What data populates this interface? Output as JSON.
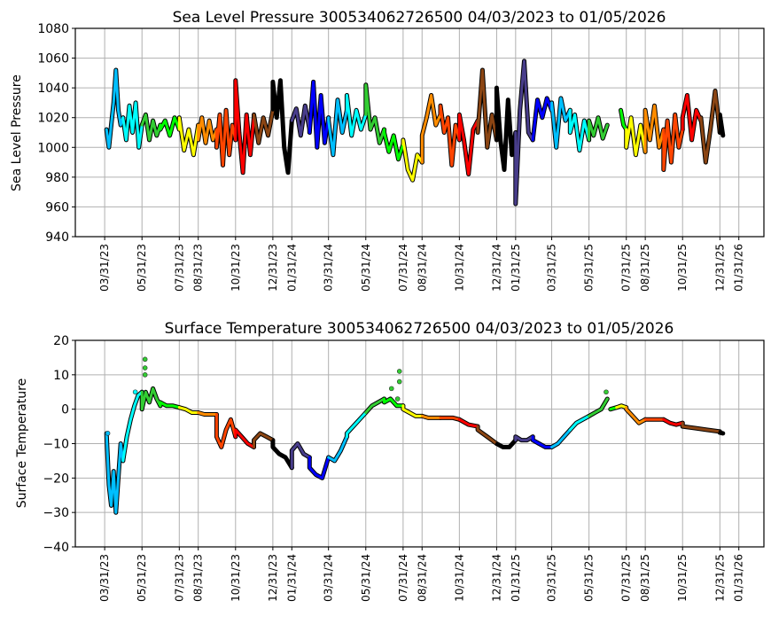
{
  "chart_data": [
    {
      "type": "line",
      "title": "Sea Level Pressure 300534062726500  04/03/2023 to 01/05/2026",
      "xlabel": "",
      "ylabel": "Sea Level Pressure",
      "ylim": [
        940,
        1080
      ],
      "yticks": [
        940,
        960,
        980,
        1000,
        1020,
        1040,
        1060,
        1080
      ],
      "xlim": [
        "2023-02-11",
        "2026-03-13"
      ],
      "grid": true,
      "xticks": [
        {
          "date": "2023-03-31",
          "label": "03/31/23"
        },
        {
          "date": "2023-05-31",
          "label": "05/31/23"
        },
        {
          "date": "2023-07-31",
          "label": "07/31/23"
        },
        {
          "date": "2023-08-31",
          "label": "08/31/23"
        },
        {
          "date": "2023-10-31",
          "label": "10/31/23"
        },
        {
          "date": "2023-12-31",
          "label": "12/31/23"
        },
        {
          "date": "2024-01-31",
          "label": "01/31/24"
        },
        {
          "date": "2024-03-31",
          "label": "03/31/24"
        },
        {
          "date": "2024-05-31",
          "label": "05/31/24"
        },
        {
          "date": "2024-07-31",
          "label": "07/31/24"
        },
        {
          "date": "2024-08-31",
          "label": "08/31/24"
        },
        {
          "date": "2024-10-31",
          "label": "10/31/24"
        },
        {
          "date": "2024-12-31",
          "label": "12/31/24"
        },
        {
          "date": "2025-01-31",
          "label": "01/31/25"
        },
        {
          "date": "2025-03-31",
          "label": "03/31/25"
        },
        {
          "date": "2025-05-31",
          "label": "05/31/25"
        },
        {
          "date": "2025-07-31",
          "label": "07/31/25"
        },
        {
          "date": "2025-08-31",
          "label": "08/31/25"
        },
        {
          "date": "2025-10-31",
          "label": "10/31/25"
        },
        {
          "date": "2025-12-31",
          "label": "12/31/25"
        },
        {
          "date": "2026-01-31",
          "label": "01/31/26"
        }
      ],
      "segments": [
        {
          "from": "2023-04-03",
          "to": "2023-04-30",
          "color": "#00bfff",
          "values": [
            1012,
            1000,
            1015,
            1030,
            1052,
            1025,
            1015,
            1020
          ]
        },
        {
          "from": "2023-04-30",
          "to": "2023-05-31",
          "color": "#00ffff",
          "values": [
            1020,
            1005,
            1028,
            1010,
            1030,
            1000,
            1015
          ]
        },
        {
          "from": "2023-05-31",
          "to": "2023-06-30",
          "color": "#32cd32",
          "values": [
            1015,
            1022,
            1005,
            1018,
            1008,
            1015
          ]
        },
        {
          "from": "2023-06-30",
          "to": "2023-07-31",
          "color": "#00ff00",
          "values": [
            1012,
            1018,
            1008,
            1020,
            1012
          ]
        },
        {
          "from": "2023-07-31",
          "to": "2023-08-31",
          "color": "#ffff00",
          "values": [
            1020,
            998,
            1012,
            995,
            1015
          ]
        },
        {
          "from": "2023-08-31",
          "to": "2023-09-30",
          "color": "#ff8c00",
          "values": [
            1005,
            1020,
            1003,
            1018,
            1005,
            1012
          ]
        },
        {
          "from": "2023-09-30",
          "to": "2023-10-31",
          "color": "#ff4500",
          "values": [
            1000,
            1022,
            988,
            1025,
            995,
            1015,
            1005
          ]
        },
        {
          "from": "2023-10-31",
          "to": "2023-11-30",
          "color": "#ff0000",
          "values": [
            1045,
            1010,
            983,
            1022,
            995,
            1020
          ]
        },
        {
          "from": "2023-11-30",
          "to": "2023-12-31",
          "color": "#8b4513",
          "values": [
            1022,
            1003,
            1020,
            1008,
            1025
          ]
        },
        {
          "from": "2023-12-31",
          "to": "2024-01-31",
          "color": "#000000",
          "values": [
            1044,
            1020,
            1045,
            1000,
            983,
            1018
          ]
        },
        {
          "from": "2024-01-31",
          "to": "2024-02-29",
          "color": "#483d8b",
          "values": [
            1018,
            1026,
            1008,
            1028,
            1012
          ]
        },
        {
          "from": "2024-02-29",
          "to": "2024-03-31",
          "color": "#0000ff",
          "values": [
            1010,
            1044,
            1000,
            1035,
            1003,
            1020
          ]
        },
        {
          "from": "2024-03-31",
          "to": "2024-04-30",
          "color": "#00bfff",
          "values": [
            1018,
            995,
            1032,
            1010,
            1025
          ]
        },
        {
          "from": "2024-04-30",
          "to": "2024-05-31",
          "color": "#00ffff",
          "values": [
            1035,
            1008,
            1025,
            1012,
            1022
          ]
        },
        {
          "from": "2024-05-31",
          "to": "2024-06-30",
          "color": "#32cd32",
          "values": [
            1042,
            1012,
            1020,
            1003,
            1012
          ]
        },
        {
          "from": "2024-06-30",
          "to": "2024-07-31",
          "color": "#00ff00",
          "values": [
            1010,
            997,
            1008,
            992,
            1002
          ]
        },
        {
          "from": "2024-07-31",
          "to": "2024-08-31",
          "color": "#ffff00",
          "values": [
            1005,
            985,
            978,
            995,
            990
          ]
        },
        {
          "from": "2024-08-31",
          "to": "2024-09-30",
          "color": "#ff8c00",
          "values": [
            1008,
            1020,
            1035,
            1015,
            1022
          ]
        },
        {
          "from": "2024-09-30",
          "to": "2024-10-31",
          "color": "#ff4500",
          "values": [
            1028,
            1010,
            1020,
            988,
            1015,
            1005
          ]
        },
        {
          "from": "2024-10-31",
          "to": "2024-11-30",
          "color": "#ff0000",
          "values": [
            1022,
            1005,
            982,
            1012,
            1018
          ]
        },
        {
          "from": "2024-11-30",
          "to": "2024-12-31",
          "color": "#8b4513",
          "values": [
            1010,
            1052,
            1000,
            1022,
            1005
          ]
        },
        {
          "from": "2024-12-31",
          "to": "2025-01-31",
          "color": "#000000",
          "values": [
            1040,
            1005,
            985,
            1032,
            995,
            1010
          ]
        },
        {
          "from": "2025-01-31",
          "to": "2025-02-28",
          "color": "#483d8b",
          "values": [
            962,
            1025,
            1058,
            1010,
            1005
          ]
        },
        {
          "from": "2025-02-28",
          "to": "2025-03-31",
          "color": "#0000ff",
          "values": [
            1005,
            1032,
            1020,
            1033,
            1025
          ]
        },
        {
          "from": "2025-03-31",
          "to": "2025-04-30",
          "color": "#00bfff",
          "values": [
            1030,
            1000,
            1033,
            1018,
            1025
          ]
        },
        {
          "from": "2025-04-30",
          "to": "2025-05-31",
          "color": "#00ffff",
          "values": [
            1010,
            1022,
            998,
            1018,
            1005
          ]
        },
        {
          "from": "2025-05-31",
          "to": "2025-06-30",
          "color": "#32cd32",
          "values": [
            1018,
            1008,
            1020,
            1006,
            1015
          ]
        },
        {
          "from": "2025-07-22",
          "to": "2025-07-31",
          "color": "#00ff00",
          "values": [
            1025,
            1015,
            1012
          ]
        },
        {
          "from": "2025-07-31",
          "to": "2025-08-31",
          "color": "#ffff00",
          "values": [
            1000,
            1020,
            995,
            1015,
            997
          ]
        },
        {
          "from": "2025-08-31",
          "to": "2025-09-30",
          "color": "#ff8c00",
          "values": [
            1025,
            1005,
            1028,
            1000,
            1012
          ]
        },
        {
          "from": "2025-09-30",
          "to": "2025-10-31",
          "color": "#ff4500",
          "values": [
            985,
            1018,
            990,
            1022,
            1000,
            1012
          ]
        },
        {
          "from": "2025-10-31",
          "to": "2025-11-30",
          "color": "#ff0000",
          "values": [
            1020,
            1035,
            1005,
            1025,
            1018
          ]
        },
        {
          "from": "2025-11-30",
          "to": "2025-12-31",
          "color": "#8b4513",
          "values": [
            1020,
            990,
            1012,
            1038,
            1010
          ]
        },
        {
          "from": "2025-12-31",
          "to": "2026-01-05",
          "color": "#000000",
          "values": [
            1022,
            1008
          ]
        }
      ]
    },
    {
      "type": "line",
      "title": "Surface Temperature 300534062726500  04/03/2023 to 01/05/2026",
      "xlabel": "",
      "ylabel": "Surface Temperature",
      "ylim": [
        -40,
        20
      ],
      "yticks": [
        -40,
        -30,
        -20,
        -10,
        0,
        10,
        20
      ],
      "xlim": [
        "2023-02-11",
        "2026-03-13"
      ],
      "grid": true,
      "segments": [
        {
          "from": "2023-04-03",
          "to": "2023-04-30",
          "color": "#00bfff",
          "values": [
            -7,
            -22,
            -28,
            -18,
            -30,
            -20,
            -10,
            -15
          ]
        },
        {
          "from": "2023-04-30",
          "to": "2023-05-31",
          "color": "#00ffff",
          "values": [
            -15,
            -8,
            -3,
            1,
            4,
            5
          ]
        },
        {
          "from": "2023-05-31",
          "to": "2023-06-30",
          "color": "#32cd32",
          "values": [
            0,
            5,
            2,
            6,
            3,
            1
          ]
        },
        {
          "from": "2023-06-30",
          "to": "2023-07-31",
          "color": "#00ff00",
          "values": [
            2,
            1,
            1,
            0.5
          ]
        },
        {
          "from": "2023-07-31",
          "to": "2023-08-31",
          "color": "#ffff00",
          "values": [
            0.5,
            0,
            -1,
            -1
          ]
        },
        {
          "from": "2023-08-31",
          "to": "2023-09-30",
          "color": "#ff8c00",
          "values": [
            -1,
            -1.5,
            -1.5,
            -1.5
          ]
        },
        {
          "from": "2023-09-30",
          "to": "2023-10-31",
          "color": "#ff4500",
          "values": [
            -8,
            -11,
            -6,
            -3,
            -8
          ]
        },
        {
          "from": "2023-10-31",
          "to": "2023-11-30",
          "color": "#ff0000",
          "values": [
            -6,
            -8,
            -10,
            -11
          ]
        },
        {
          "from": "2023-11-30",
          "to": "2023-12-31",
          "color": "#8b4513",
          "values": [
            -9,
            -7,
            -8,
            -9
          ]
        },
        {
          "from": "2023-12-31",
          "to": "2024-01-31",
          "color": "#000000",
          "values": [
            -11,
            -13,
            -14,
            -17
          ]
        },
        {
          "from": "2024-01-31",
          "to": "2024-02-29",
          "color": "#483d8b",
          "values": [
            -12,
            -10,
            -13,
            -14
          ]
        },
        {
          "from": "2024-02-29",
          "to": "2024-03-31",
          "color": "#0000ff",
          "values": [
            -17,
            -19,
            -20,
            -14
          ]
        },
        {
          "from": "2024-03-31",
          "to": "2024-04-30",
          "color": "#00bfff",
          "values": [
            -14,
            -15,
            -12,
            -8
          ]
        },
        {
          "from": "2024-04-30",
          "to": "2024-05-31",
          "color": "#00ffff",
          "values": [
            -7,
            -4,
            -1
          ]
        },
        {
          "from": "2024-05-31",
          "to": "2024-06-30",
          "color": "#32cd32",
          "values": [
            -1,
            1,
            2,
            3
          ]
        },
        {
          "from": "2024-06-30",
          "to": "2024-07-31",
          "color": "#00ff00",
          "values": [
            2,
            3,
            1,
            1
          ]
        },
        {
          "from": "2024-07-31",
          "to": "2024-08-31",
          "color": "#ffff00",
          "values": [
            0,
            -1,
            -2,
            -2
          ]
        },
        {
          "from": "2024-08-31",
          "to": "2024-09-30",
          "color": "#ff8c00",
          "values": [
            -2,
            -2.5,
            -2.5,
            -2.5
          ]
        },
        {
          "from": "2024-09-30",
          "to": "2024-10-31",
          "color": "#ff4500",
          "values": [
            -2.5,
            -2.5,
            -2.5,
            -3
          ]
        },
        {
          "from": "2024-10-31",
          "to": "2024-11-30",
          "color": "#ff0000",
          "values": [
            -3,
            -4.5,
            -5
          ]
        },
        {
          "from": "2024-11-30",
          "to": "2024-12-31",
          "color": "#8b4513",
          "values": [
            -6,
            -8,
            -10
          ]
        },
        {
          "from": "2024-12-31",
          "to": "2025-01-31",
          "color": "#000000",
          "values": [
            -10,
            -11,
            -11,
            -9
          ]
        },
        {
          "from": "2025-01-31",
          "to": "2025-02-28",
          "color": "#483d8b",
          "values": [
            -8,
            -9,
            -9,
            -8
          ]
        },
        {
          "from": "2025-02-28",
          "to": "2025-03-31",
          "color": "#0000ff",
          "values": [
            -9,
            -10,
            -11,
            -11
          ]
        },
        {
          "from": "2025-03-31",
          "to": "2025-04-30",
          "color": "#00bfff",
          "values": [
            -11,
            -10,
            -8,
            -6
          ]
        },
        {
          "from": "2025-04-30",
          "to": "2025-05-31",
          "color": "#00ffff",
          "values": [
            -6,
            -4,
            -3,
            -2
          ]
        },
        {
          "from": "2025-05-31",
          "to": "2025-06-30",
          "color": "#32cd32",
          "values": [
            -2,
            -1,
            0,
            3
          ]
        },
        {
          "from": "2025-07-05",
          "to": "2025-07-15",
          "color": "#00ff00",
          "values": [
            0,
            0.5
          ]
        },
        {
          "from": "2025-07-15",
          "to": "2025-07-31",
          "color": "#ffff00",
          "values": [
            0.5,
            1,
            0.5
          ]
        },
        {
          "from": "2025-07-31",
          "to": "2025-08-31",
          "color": "#ff8c00",
          "values": [
            0,
            -2,
            -4,
            -3
          ]
        },
        {
          "from": "2025-08-31",
          "to": "2025-09-30",
          "color": "#ff4500",
          "values": [
            -3,
            -3,
            -3,
            -3
          ]
        },
        {
          "from": "2025-09-30",
          "to": "2025-10-31",
          "color": "#ff0000",
          "values": [
            -3,
            -4,
            -4.5,
            -4
          ]
        },
        {
          "from": "2025-10-31",
          "to": "2025-12-31",
          "color": "#8b4513",
          "values": [
            -5,
            -5.5,
            -6,
            -6.5
          ]
        },
        {
          "from": "2025-12-31",
          "to": "2026-01-05",
          "color": "#000000",
          "values": [
            -6.8,
            -7
          ]
        }
      ],
      "scatter_points": [
        {
          "date": "2023-06-05",
          "value": 14.5,
          "color": "#32cd32"
        },
        {
          "date": "2023-06-05",
          "value": 12,
          "color": "#32cd32"
        },
        {
          "date": "2023-06-05",
          "value": 10,
          "color": "#32cd32"
        },
        {
          "date": "2023-05-20",
          "value": 5,
          "color": "#00ffff"
        },
        {
          "date": "2023-04-05",
          "value": -7,
          "color": "#00bfff"
        },
        {
          "date": "2024-07-12",
          "value": 6,
          "color": "#32cd32"
        },
        {
          "date": "2024-07-25",
          "value": 11,
          "color": "#32cd32"
        },
        {
          "date": "2024-07-25",
          "value": 8,
          "color": "#32cd32"
        },
        {
          "date": "2024-07-22",
          "value": 3,
          "color": "#32cd32"
        },
        {
          "date": "2025-06-28",
          "value": 5,
          "color": "#32cd32"
        }
      ]
    }
  ]
}
